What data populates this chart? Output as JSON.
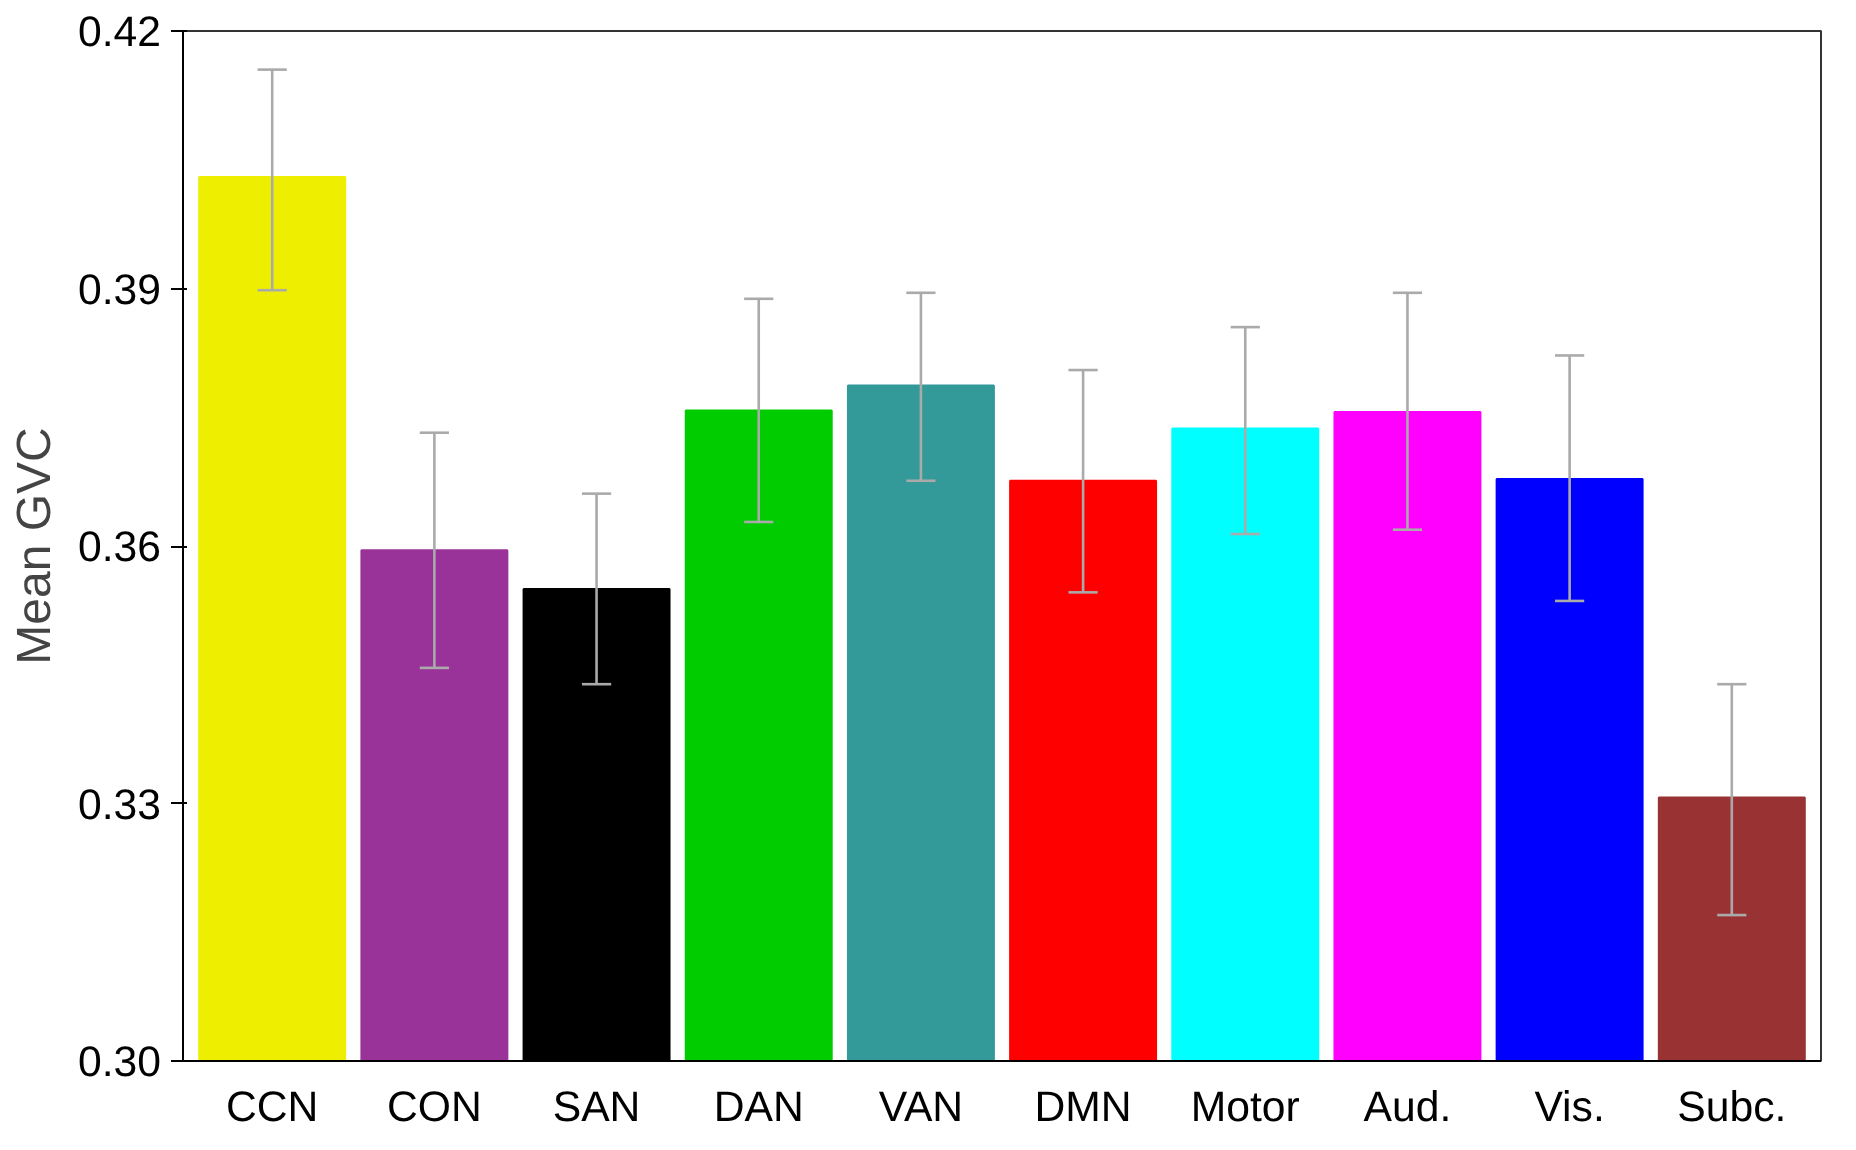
{
  "chart_data": {
    "type": "bar",
    "ylabel": "Mean GVC",
    "categories": [
      "CCN",
      "CON",
      "SAN",
      "DAN",
      "VAN",
      "DMN",
      "Motor",
      "Aud.",
      "Vis.",
      "Subc."
    ],
    "values": [
      0.403,
      0.3595,
      0.355,
      0.3758,
      0.3787,
      0.3676,
      0.3737,
      0.3756,
      0.3678,
      0.3307
    ],
    "colors": [
      "#eeee00",
      "#993399",
      "#000000",
      "#00cc00",
      "#339999",
      "#ff0000",
      "#00ffff",
      "#ff00ff",
      "#0000ff",
      "#993333"
    ],
    "errors": [
      [
        0.3898,
        0.4155
      ],
      [
        0.3458,
        0.3732
      ],
      [
        0.3439,
        0.3661
      ],
      [
        0.3628,
        0.3888
      ],
      [
        0.3676,
        0.3895
      ],
      [
        0.3546,
        0.3805
      ],
      [
        0.3614,
        0.3855
      ],
      [
        0.3619,
        0.3895
      ],
      [
        0.3536,
        0.3822
      ],
      [
        0.317,
        0.3439
      ]
    ],
    "ylim": [
      0.3,
      0.42
    ],
    "yticks": [
      {
        "value": 0.3,
        "label": "0.30"
      },
      {
        "value": 0.33,
        "label": "0.33"
      },
      {
        "value": 0.36,
        "label": "0.36"
      },
      {
        "value": 0.39,
        "label": "0.39"
      },
      {
        "value": 0.42,
        "label": "0.42"
      }
    ],
    "grid": false
  }
}
